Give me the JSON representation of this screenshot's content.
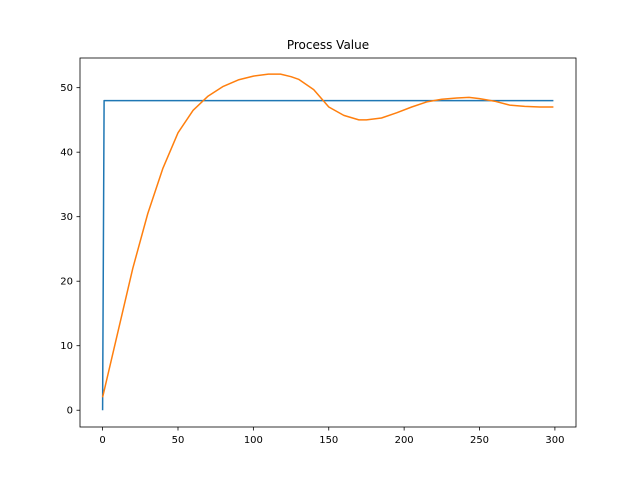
{
  "chart_data": {
    "type": "line",
    "title": "Process Value",
    "xlabel": "",
    "ylabel": "",
    "xlim": [
      -15,
      314
    ],
    "ylim": [
      -2.6,
      54.6
    ],
    "xticks": [
      0,
      50,
      100,
      150,
      200,
      250,
      300
    ],
    "yticks": [
      0,
      10,
      20,
      30,
      40,
      50
    ],
    "grid": false,
    "series": [
      {
        "color": "#1f77b4",
        "x": [
          0,
          1,
          299
        ],
        "y": [
          0,
          48,
          48
        ]
      },
      {
        "color": "#ff7f0e",
        "x": [
          0,
          10,
          20,
          30,
          40,
          50,
          60,
          70,
          80,
          90,
          100,
          110,
          118,
          125,
          130,
          140,
          150,
          160,
          170,
          175,
          185,
          195,
          205,
          215,
          225,
          235,
          243,
          250,
          260,
          270,
          280,
          290,
          299
        ],
        "y": [
          2,
          12,
          22,
          30.5,
          37.5,
          43,
          46.5,
          48.7,
          50.2,
          51.2,
          51.8,
          52.1,
          52.1,
          51.7,
          51.3,
          49.7,
          47,
          45.7,
          45,
          45,
          45.3,
          46.1,
          47,
          47.8,
          48.2,
          48.4,
          48.5,
          48.3,
          47.9,
          47.3,
          47.1,
          47,
          47
        ]
      }
    ]
  }
}
